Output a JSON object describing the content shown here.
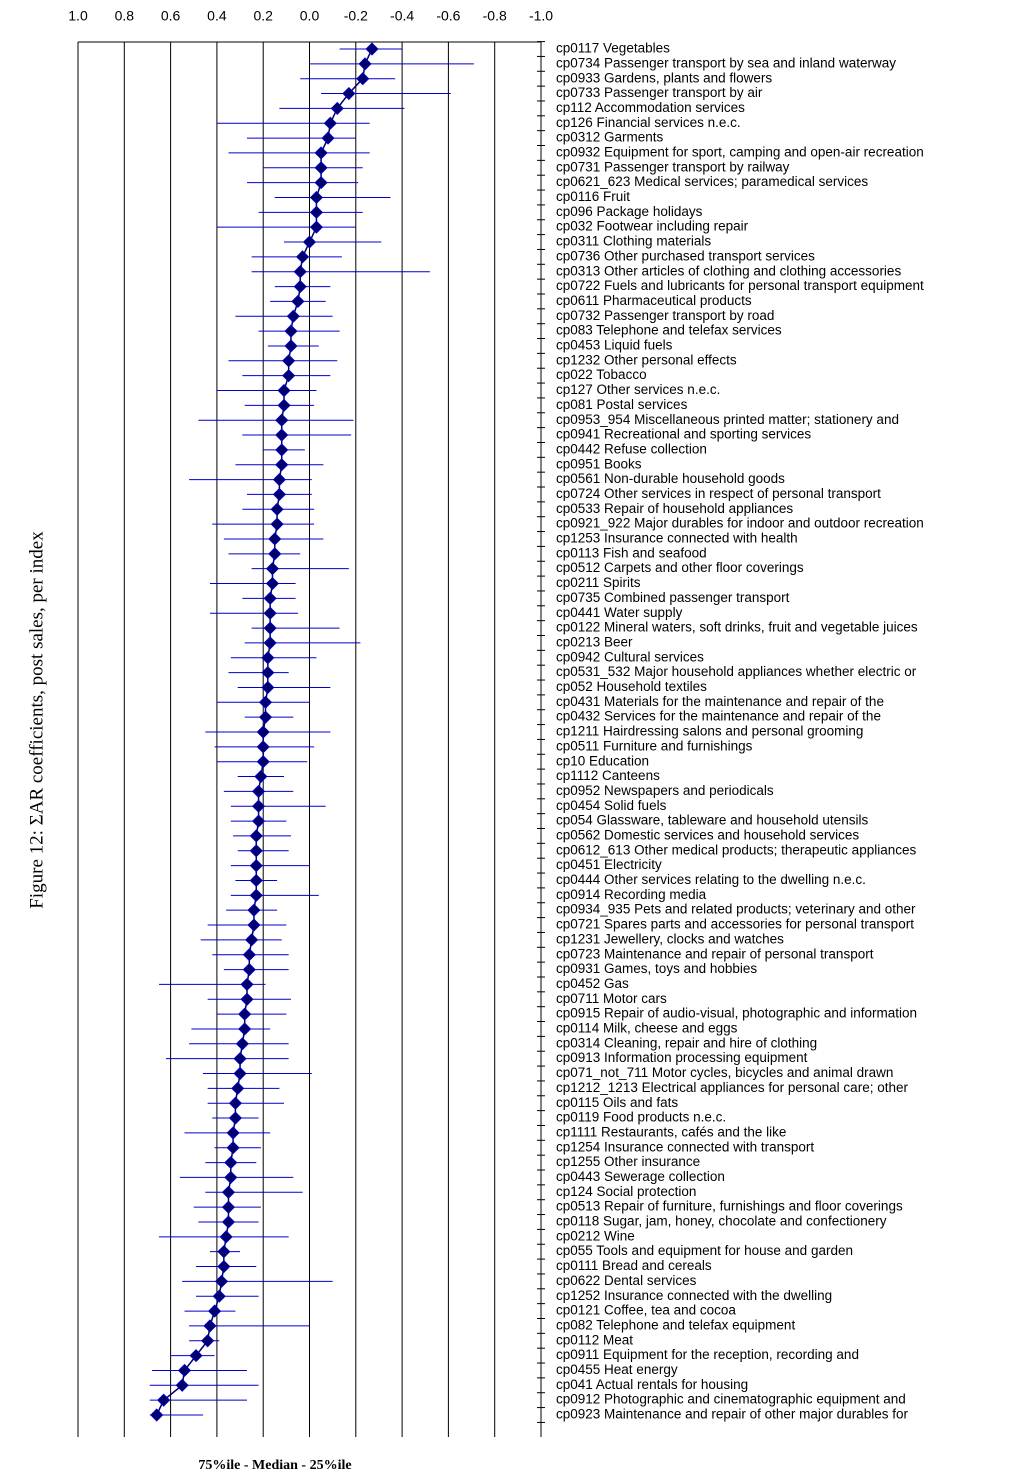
{
  "chart_data": {
    "type": "dot",
    "ylabel": "Figure 12: ΣAR coefficients, post sales, per index",
    "xlabel": "75%ile - Median - 25%ile",
    "xlim": [
      1.0,
      -1.0
    ],
    "xticks": [
      {
        "value": 1.0,
        "label": "1.0"
      },
      0.8,
      0.6,
      0.4,
      0.2,
      {
        "value": 0.0,
        "label": "0.0"
      },
      -0.2,
      -0.4,
      -0.6,
      -0.8,
      {
        "value": -1.0,
        "label": "-1.0"
      }
    ],
    "grid": true,
    "color": "#00006e",
    "bar_color": "#0000cc",
    "categories": [
      "cp0117 Vegetables",
      "cp0734 Passenger transport by sea and inland waterway",
      "cp0933 Gardens, plants and flowers",
      "cp0733 Passenger transport by air",
      "cp112 Accommodation services",
      "cp126 Financial services n.e.c.",
      "cp0312 Garments",
      "cp0932 Equipment for sport, camping and open-air recreation",
      "cp0731 Passenger transport by railway",
      "cp0621_623 Medical services; paramedical services",
      "cp0116 Fruit",
      "cp096 Package holidays",
      "cp032 Footwear including repair",
      "cp0311 Clothing materials",
      "cp0736 Other purchased transport services",
      "cp0313 Other articles of clothing and clothing accessories",
      "cp0722 Fuels and lubricants for personal transport equipment",
      "cp0611 Pharmaceutical products",
      "cp0732 Passenger transport by road",
      "cp083 Telephone and telefax services",
      "cp0453 Liquid fuels",
      "cp1232 Other personal effects",
      "cp022 Tobacco",
      "cp127 Other services n.e.c.",
      "cp081 Postal services",
      "cp0953_954 Miscellaneous printed matter; stationery and",
      "cp0941 Recreational and sporting services",
      "cp0442 Refuse collection",
      "cp0951 Books",
      "cp0561 Non-durable household goods",
      "cp0724 Other services in respect of personal transport",
      "cp0533 Repair of household appliances",
      "cp0921_922 Major durables for indoor and outdoor recreation",
      "cp1253 Insurance connected with health",
      "cp0113 Fish and seafood",
      "cp0512 Carpets and other floor coverings",
      "cp0211 Spirits",
      "cp0735 Combined passenger transport",
      "cp0441 Water supply",
      "cp0122 Mineral waters, soft drinks, fruit and vegetable juices",
      "cp0213 Beer",
      "cp0942 Cultural services",
      "cp0531_532 Major household appliances whether electric or",
      "cp052 Household textiles",
      "cp0431 Materials for the maintenance and repair of the",
      "cp0432 Services for the maintenance and repair of the",
      "cp1211 Hairdressing salons and personal grooming",
      "cp0511 Furniture and furnishings",
      "cp10 Education",
      "cp1112 Canteens",
      "cp0952 Newspapers and periodicals",
      "cp0454 Solid fuels",
      "cp054 Glassware, tableware and household utensils",
      "cp0562 Domestic services and household services",
      "cp0612_613 Other medical products; therapeutic appliances",
      "cp0451 Electricity",
      "cp0444 Other services relating to the dwelling n.e.c.",
      "cp0914 Recording media",
      "cp0934_935 Pets and related products; veterinary and other",
      "cp0721 Spares parts and accessories for personal transport",
      "cp1231 Jewellery, clocks and watches",
      "cp0723 Maintenance and repair of personal transport",
      "cp0931 Games, toys and hobbies",
      "cp0452 Gas",
      "cp0711 Motor cars",
      "cp0915 Repair of audio-visual, photographic and information",
      "cp0114 Milk, cheese and eggs",
      "cp0314 Cleaning, repair and hire of clothing",
      "cp0913 Information processing equipment",
      "cp071_not_711 Motor cycles, bicycles and animal drawn",
      "cp1212_1213 Electrical appliances for personal care; other",
      "cp0115 Oils and fats",
      "cp0119 Food products n.e.c.",
      "cp1111 Restaurants, cafés and the like",
      "cp1254 Insurance connected with transport",
      "cp1255 Other insurance",
      "cp0443 Sewerage collection",
      "cp124 Social protection",
      "cp0513 Repair of furniture, furnishings and floor coverings",
      "cp0118 Sugar, jam, honey, chocolate and confectionery",
      "cp0212 Wine",
      "cp055 Tools and equipment for house and garden",
      "cp0111 Bread and cereals",
      "cp0622 Dental services",
      "cp1252 Insurance connected with the dwelling",
      "cp0121 Coffee, tea and cocoa",
      "cp082 Telephone and telefax equipment",
      "cp0112 Meat",
      "cp0911 Equipment for the reception, recording and",
      "cp0455 Heat energy",
      "cp041 Actual rentals for housing",
      "cp0912 Photographic and cinematographic equipment and",
      "cp0923 Maintenance and repair of other major durables for"
    ],
    "values": [
      -0.27,
      -0.24,
      -0.23,
      -0.17,
      -0.12,
      -0.09,
      -0.08,
      -0.05,
      -0.05,
      -0.05,
      -0.03,
      -0.03,
      -0.03,
      0.0,
      0.03,
      0.04,
      0.04,
      0.05,
      0.07,
      0.08,
      0.08,
      0.09,
      0.09,
      0.11,
      0.11,
      0.12,
      0.12,
      0.12,
      0.12,
      0.13,
      0.13,
      0.14,
      0.14,
      0.15,
      0.15,
      0.16,
      0.16,
      0.17,
      0.17,
      0.17,
      0.17,
      0.18,
      0.18,
      0.18,
      0.19,
      0.19,
      0.2,
      0.2,
      0.2,
      0.21,
      0.22,
      0.22,
      0.22,
      0.23,
      0.23,
      0.23,
      0.23,
      0.23,
      0.24,
      0.24,
      0.25,
      0.26,
      0.26,
      0.27,
      0.27,
      0.28,
      0.28,
      0.29,
      0.3,
      0.3,
      0.31,
      0.32,
      0.32,
      0.33,
      0.33,
      0.34,
      0.34,
      0.35,
      0.35,
      0.35,
      0.36,
      0.37,
      0.37,
      0.38,
      0.39,
      0.41,
      0.43,
      0.44,
      0.49,
      0.54,
      0.55,
      0.63,
      0.66
    ],
    "q75": [
      -0.13,
      0.0,
      0.04,
      -0.05,
      0.13,
      0.4,
      0.27,
      0.35,
      0.2,
      0.27,
      0.15,
      0.22,
      0.4,
      0.11,
      0.25,
      0.25,
      0.15,
      0.17,
      0.32,
      0.22,
      0.18,
      0.35,
      0.29,
      0.4,
      0.28,
      0.48,
      0.29,
      0.2,
      0.32,
      0.52,
      0.27,
      0.29,
      0.42,
      0.37,
      0.35,
      0.25,
      0.43,
      0.29,
      0.43,
      0.25,
      0.28,
      0.34,
      0.35,
      0.31,
      0.4,
      0.28,
      0.45,
      0.41,
      0.4,
      0.31,
      0.37,
      0.34,
      0.34,
      0.33,
      0.31,
      0.34,
      0.32,
      0.34,
      0.36,
      0.44,
      0.47,
      0.42,
      0.37,
      0.65,
      0.44,
      0.4,
      0.51,
      0.52,
      0.62,
      0.46,
      0.44,
      0.44,
      0.42,
      0.54,
      0.41,
      0.45,
      0.56,
      0.45,
      0.5,
      0.48,
      0.65,
      0.43,
      0.49,
      0.55,
      0.49,
      0.54,
      0.52,
      0.52,
      0.6,
      0.68,
      0.69,
      0.69,
      0.69
    ],
    "q25": [
      -0.4,
      -0.71,
      -0.37,
      -0.61,
      -0.41,
      -0.26,
      -0.2,
      -0.26,
      -0.23,
      -0.21,
      -0.35,
      -0.23,
      -0.2,
      -0.31,
      -0.14,
      -0.52,
      -0.09,
      -0.07,
      -0.1,
      -0.13,
      -0.04,
      -0.12,
      -0.09,
      -0.03,
      -0.02,
      -0.19,
      -0.18,
      0.02,
      -0.06,
      -0.01,
      -0.01,
      -0.02,
      -0.02,
      -0.06,
      0.04,
      -0.17,
      0.06,
      0.06,
      0.05,
      -0.13,
      -0.22,
      -0.03,
      0.09,
      -0.09,
      0.0,
      0.07,
      -0.09,
      -0.02,
      0.01,
      0.11,
      0.07,
      -0.07,
      0.1,
      0.08,
      0.09,
      0.0,
      0.14,
      -0.04,
      0.14,
      0.1,
      0.12,
      0.09,
      0.09,
      0.19,
      0.08,
      0.1,
      0.17,
      0.09,
      0.09,
      -0.01,
      0.13,
      0.11,
      0.22,
      0.17,
      0.21,
      0.23,
      0.07,
      0.03,
      0.21,
      0.22,
      0.09,
      0.3,
      0.23,
      -0.1,
      0.22,
      0.32,
      0.0,
      0.39,
      0.41,
      0.27,
      0.22,
      0.27,
      0.46
    ]
  }
}
